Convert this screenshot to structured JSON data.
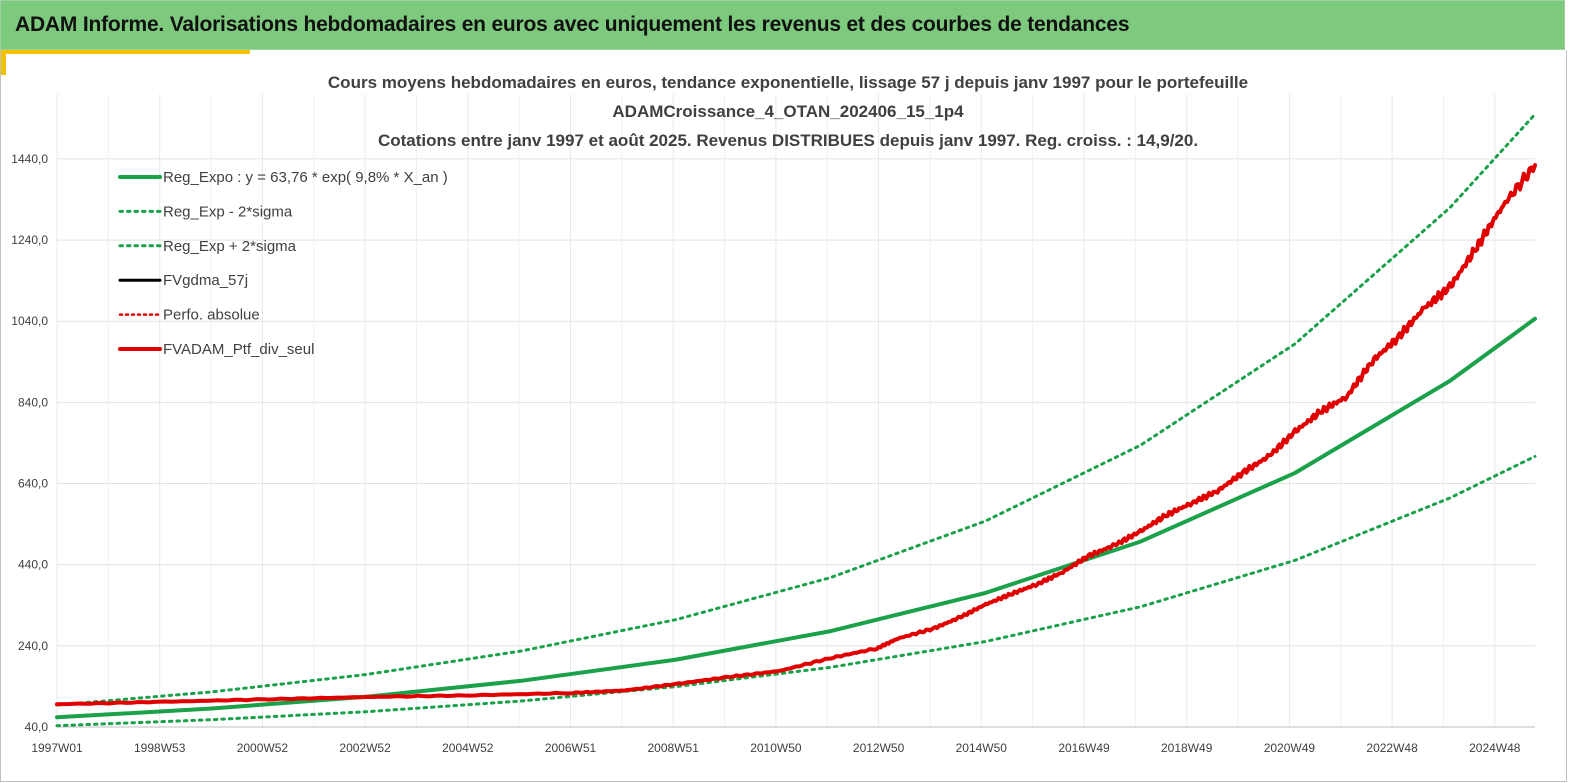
{
  "header": {
    "title": "ADAM Informe. Valorisations hebdomadaires en euros avec uniquement les revenus et des courbes de tendances"
  },
  "chart_data": {
    "type": "line",
    "title_lines": [
      "Cours moyens hebdomadaires  en euros, tendance exponentielle, lissage 57 j depuis janv 1997 pour le portefeuille",
      "ADAMCroissance_4_OTAN_202406_15_1p4",
      "Cotations  entre janv 1997 et août  2025. Revenus DISTRIBUES depuis janv 1997. Reg. croiss. : 14,9/20."
    ],
    "x_tick_labels": [
      "1997W01",
      "1998W53",
      "2000W52",
      "2002W52",
      "2004W52",
      "2006W51",
      "2008W51",
      "2010W50",
      "2012W50",
      "2014W50",
      "2016W49",
      "2018W49",
      "2020W49",
      "2022W48",
      "2024W48"
    ],
    "x_range_years": [
      1997.0,
      2025.65
    ],
    "y_tick_labels": [
      "40,0",
      "240,0",
      "440,0",
      "640,0",
      "840,0",
      "1040,0",
      "1240,0",
      "1440,0"
    ],
    "ylim": [
      40,
      1600
    ],
    "grid": true,
    "legend_position": "top-left",
    "series": [
      {
        "name": "Reg_Expo : y = 63,76 * exp( 9,8% *  X_an )",
        "style": "solid",
        "color": "#1aa14a",
        "x": [
          1997,
          2000,
          2003,
          2006,
          2009,
          2012,
          2015,
          2018,
          2021,
          2024,
          2025.65
        ],
        "y": [
          63.8,
          85.5,
          114.7,
          153.8,
          206.2,
          276.4,
          370.6,
          496.8,
          666.1,
          893,
          1046
        ]
      },
      {
        "name": "Reg_Exp - 2*sigma",
        "style": "dotted",
        "color": "#1aa14a",
        "x": [
          1997,
          2000,
          2003,
          2006,
          2009,
          2012,
          2015,
          2018,
          2021,
          2024,
          2025.65
        ],
        "y": [
          43.2,
          57.9,
          77.6,
          104.1,
          139.5,
          187.1,
          250.8,
          336.2,
          450.8,
          604.4,
          707
        ]
      },
      {
        "name": "Reg_Exp + 2*sigma",
        "style": "dotted",
        "color": "#1aa14a",
        "x": [
          1997,
          2000,
          2003,
          2006,
          2009,
          2012,
          2015,
          2018,
          2021,
          2024,
          2025.65
        ],
        "y": [
          94.3,
          126.4,
          169.5,
          227.3,
          304.7,
          408.5,
          547.7,
          734.3,
          984.4,
          1319.7,
          1550
        ]
      },
      {
        "name": "FVgdma_57j",
        "style": "solid",
        "color": "#000000",
        "x": [
          1997,
          1999,
          2001,
          2003,
          2005,
          2007,
          2008,
          2009,
          2010,
          2011,
          2012,
          2012.9,
          2013.3,
          2014,
          2014.5,
          2015,
          2015.5,
          2016,
          2016.5,
          2017,
          2017.5,
          2018,
          2018.5,
          2019,
          2019.5,
          2020,
          2020.5,
          2021,
          2021.5,
          2022,
          2022.5,
          2023,
          2023.5,
          2024,
          2024.5,
          2025,
          2025.65
        ],
        "y": [
          96,
          102,
          108,
          114,
          118,
          124,
          130,
          146,
          163,
          178,
          210,
          234,
          258,
          283,
          310,
          342,
          368,
          392,
          422,
          462,
          488,
          522,
          562,
          592,
          622,
          668,
          708,
          768,
          818,
          854,
          942,
          1000,
          1072,
          1124,
          1218,
          1320,
          1420
        ]
      },
      {
        "name": "Perfo. absolue",
        "style": "dotted",
        "color": "#e00000",
        "x": [
          1997,
          1999,
          2001,
          2003,
          2005,
          2007,
          2008,
          2009,
          2010,
          2011,
          2012,
          2012.9,
          2013.3,
          2014,
          2014.5,
          2015,
          2015.5,
          2016,
          2016.5,
          2017,
          2017.5,
          2018,
          2018.5,
          2019,
          2019.5,
          2020,
          2020.5,
          2021,
          2021.5,
          2022,
          2022.5,
          2023,
          2023.5,
          2024,
          2024.5,
          2025,
          2025.65
        ],
        "y": [
          96,
          102,
          108,
          114,
          118,
          124,
          130,
          146,
          163,
          178,
          210,
          234,
          258,
          283,
          310,
          342,
          368,
          392,
          422,
          462,
          488,
          522,
          562,
          592,
          622,
          668,
          708,
          768,
          818,
          854,
          942,
          1000,
          1072,
          1124,
          1218,
          1320,
          1420
        ]
      },
      {
        "name": "FVADAM_Ptf_div_seul",
        "style": "solid-thick",
        "color": "#e00000",
        "x": [
          1997,
          1999,
          2001,
          2003,
          2005,
          2007,
          2008,
          2009,
          2010,
          2011,
          2012,
          2012.9,
          2013.3,
          2014,
          2014.5,
          2015,
          2015.5,
          2016,
          2016.5,
          2017,
          2017.5,
          2018,
          2018.5,
          2019,
          2019.5,
          2020,
          2020.5,
          2021,
          2021.5,
          2022,
          2022.5,
          2023,
          2023.5,
          2024,
          2024.5,
          2025,
          2025.65
        ],
        "y": [
          96,
          102,
          108,
          114,
          118,
          124,
          130,
          146,
          163,
          178,
          210,
          234,
          258,
          283,
          310,
          342,
          368,
          392,
          422,
          462,
          488,
          522,
          562,
          592,
          622,
          668,
          708,
          768,
          818,
          854,
          942,
          1000,
          1072,
          1124,
          1218,
          1320,
          1425
        ]
      }
    ]
  }
}
